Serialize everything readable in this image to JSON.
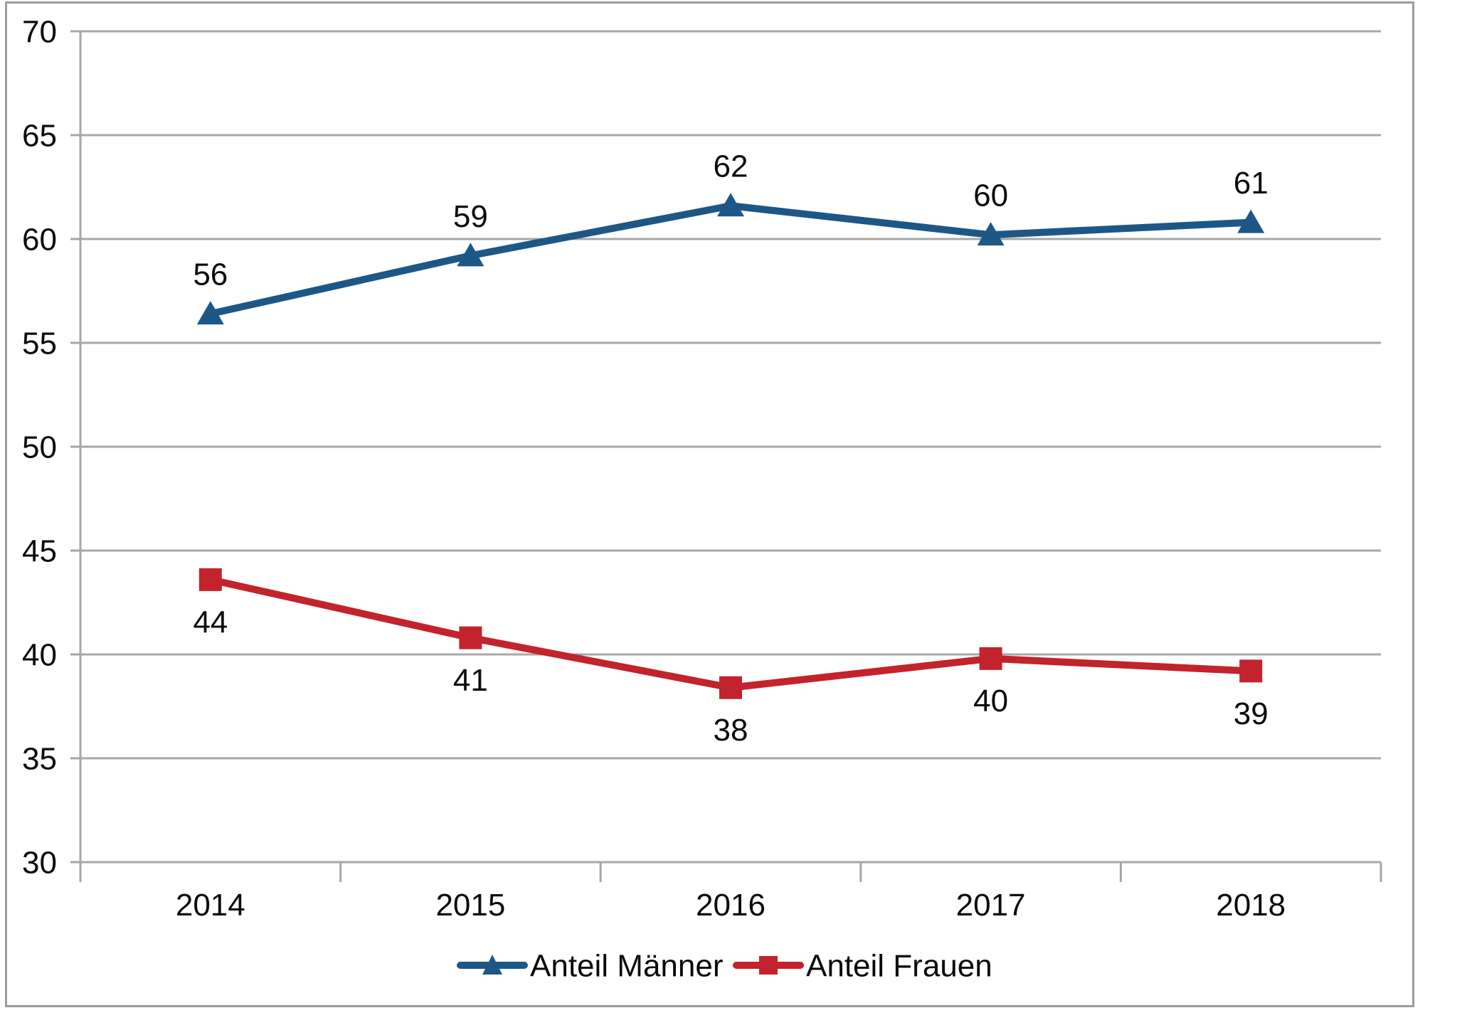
{
  "figure": {
    "background_color": "#FFFFFF",
    "border_color": "#9B9B9B",
    "gridline_color": "#A7A7A7",
    "axis_color": "#A7A7A7",
    "text_color": "#0B0B0B"
  },
  "chart_data": {
    "type": "line",
    "title": "",
    "xlabel": "",
    "ylabel": "",
    "categories": [
      "2014",
      "2015",
      "2016",
      "2017",
      "2018"
    ],
    "series": [
      {
        "name": "Anteil Männer",
        "color": "#1D5786",
        "marker": "triangle",
        "values": [
          56,
          59,
          62,
          60,
          61
        ],
        "plotted_values": [
          56.4,
          59.2,
          61.6,
          60.2,
          60.8
        ],
        "data_label_position": "above"
      },
      {
        "name": "Anteil Frauen",
        "color": "#C2232C",
        "marker": "square",
        "values": [
          44,
          41,
          38,
          40,
          39
        ],
        "plotted_values": [
          43.6,
          40.8,
          38.4,
          39.8,
          39.2
        ],
        "data_label_position": "below"
      }
    ],
    "ylim": [
      30,
      70
    ],
    "yticks": [
      30,
      35,
      40,
      45,
      50,
      55,
      60,
      65,
      70
    ],
    "grid": true,
    "data_labels_shown": true,
    "legend_position": "bottom"
  }
}
